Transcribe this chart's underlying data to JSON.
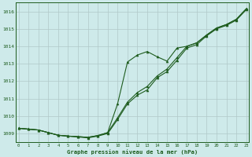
{
  "title": "Graphe pression niveau de la mer (hPa)",
  "xlabel_hours": [
    0,
    1,
    2,
    3,
    4,
    5,
    6,
    7,
    8,
    9,
    10,
    11,
    12,
    13,
    14,
    15,
    16,
    17,
    18,
    19,
    20,
    21,
    22,
    23
  ],
  "ylim": [
    1008.5,
    1016.5
  ],
  "yticks": [
    1009,
    1010,
    1011,
    1012,
    1013,
    1014,
    1015,
    1016
  ],
  "background_color": "#ceeaea",
  "grid_color": "#b0c8c8",
  "line_color": "#1e5c1e",
  "line1": [
    1009.3,
    1009.25,
    1009.2,
    1009.05,
    1008.9,
    1008.85,
    1008.8,
    1008.75,
    1008.85,
    1009.0,
    1009.8,
    1010.7,
    1011.2,
    1011.5,
    1012.2,
    1012.55,
    1013.2,
    1013.9,
    1014.1,
    1014.6,
    1015.0,
    1015.2,
    1015.5,
    1016.1
  ],
  "line2": [
    1009.3,
    1009.25,
    1009.2,
    1009.05,
    1008.9,
    1008.85,
    1008.82,
    1008.78,
    1008.88,
    1009.05,
    1009.9,
    1010.8,
    1011.35,
    1011.7,
    1012.3,
    1012.7,
    1013.35,
    1014.0,
    1014.2,
    1014.65,
    1015.05,
    1015.25,
    1015.55,
    1016.15
  ],
  "line3": [
    1009.3,
    1009.25,
    1009.2,
    1009.05,
    1008.9,
    1008.85,
    1008.82,
    1008.78,
    1008.88,
    1009.05,
    1010.7,
    1013.1,
    1013.5,
    1013.7,
    1013.4,
    1013.15,
    1013.9,
    1014.0,
    1014.2,
    1014.65,
    1015.05,
    1015.25,
    1015.55,
    1016.15
  ]
}
